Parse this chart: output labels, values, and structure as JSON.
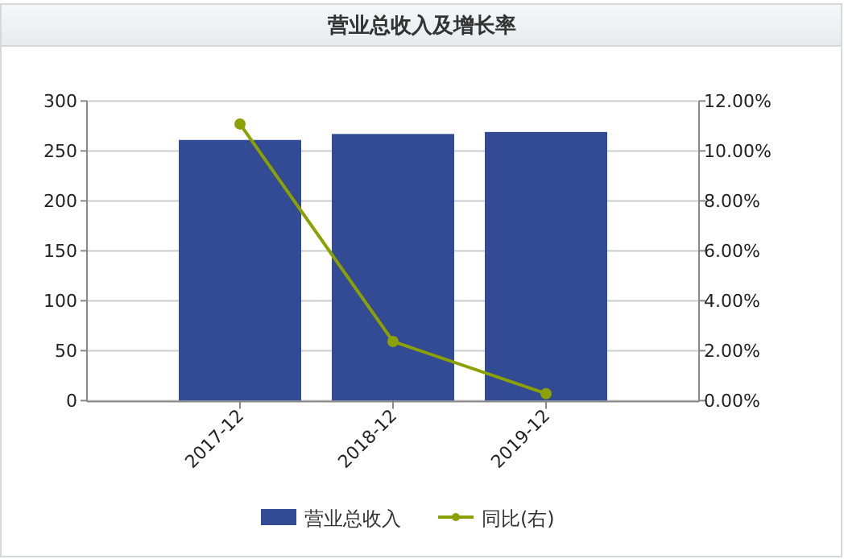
{
  "chart_data": {
    "type": "bar",
    "title": "营业总收入及增长率",
    "categories": [
      "2017-12",
      "2018-12",
      "2019-12"
    ],
    "series": [
      {
        "name": "营业总收入",
        "color": "#334a94",
        "values": [
          261,
          267,
          269
        ]
      },
      {
        "name": "同比(右)",
        "type": "line",
        "axis": "y2",
        "color": "#8aa100",
        "marker": "circle",
        "values": [
          11.08,
          2.37,
          0.28
        ]
      }
    ],
    "ylim": [
      0,
      300
    ],
    "yticks": [
      0,
      50,
      100,
      150,
      200,
      250,
      300
    ],
    "y2lim": [
      0,
      12
    ],
    "y2ticks": [
      {
        "value": 0,
        "label": "0.00%"
      },
      {
        "value": 2,
        "label": "2.00%"
      },
      {
        "value": 4,
        "label": "4.00%"
      },
      {
        "value": 6,
        "label": "6.00%"
      },
      {
        "value": 8,
        "label": "8.00%"
      },
      {
        "value": 10,
        "label": "10.00%"
      },
      {
        "value": 12,
        "label": "12.00%"
      }
    ],
    "grid": "y",
    "legend": "bottom"
  }
}
